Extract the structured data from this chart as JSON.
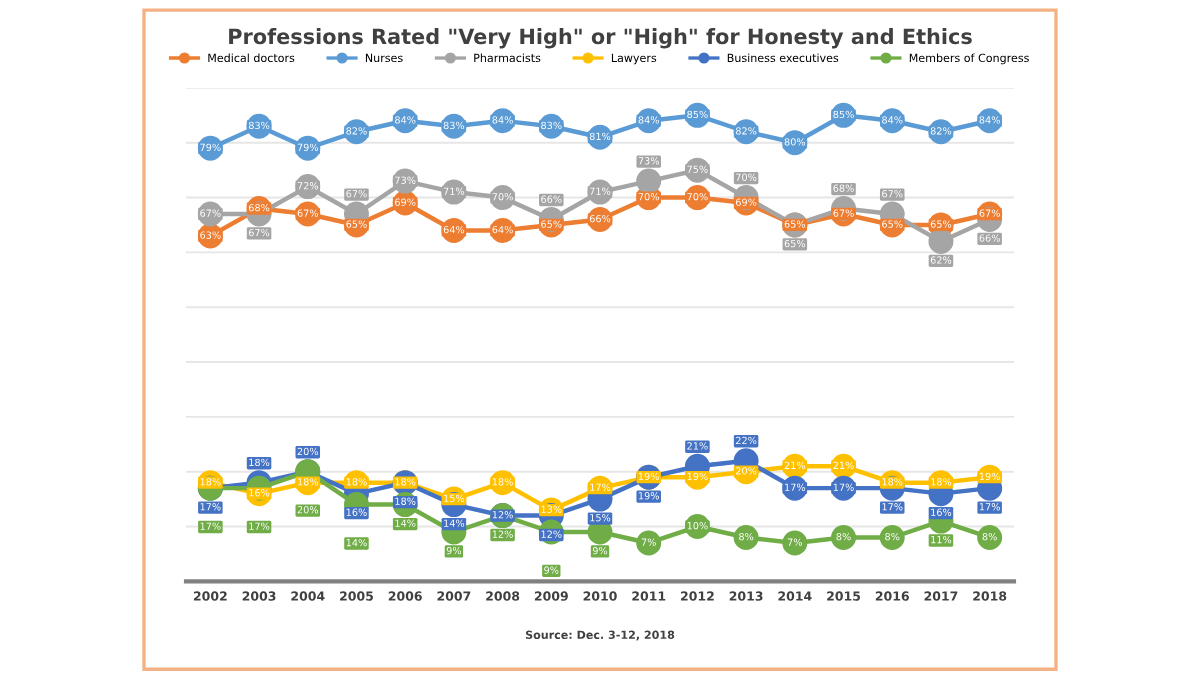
{
  "chart_data": {
    "type": "line",
    "title": "Professions Rated \"Very High\" or \"High\" for Honesty and Ethics",
    "categories": [
      "2002",
      "2003",
      "2004",
      "2005",
      "2006",
      "2007",
      "2008",
      "2009",
      "2010",
      "2011",
      "2012",
      "2013",
      "2014",
      "2015",
      "2016",
      "2017",
      "2018"
    ],
    "series": [
      {
        "name": "Medical doctors",
        "color": "#ed7d31",
        "values": [
          63,
          68,
          67,
          65,
          69,
          64,
          64,
          65,
          66,
          70,
          70,
          69,
          65,
          67,
          65,
          65,
          67
        ],
        "value_labels": [
          "63%",
          "68%",
          "67%",
          "65%",
          "69%",
          "64%",
          "64%",
          "65%",
          "66%",
          "70%",
          "70%",
          "69%",
          "65%",
          "67%",
          "65%",
          "65%",
          "67%"
        ]
      },
      {
        "name": "Nurses",
        "color": "#5b9bd5",
        "values": [
          79,
          83,
          79,
          82,
          84,
          83,
          84,
          83,
          81,
          84,
          85,
          82,
          80,
          85,
          84,
          82,
          84
        ],
        "value_labels": [
          "79%",
          "83%",
          "79%",
          "82%",
          "84%",
          "83%",
          "84%",
          "83%",
          "81%",
          "84%",
          "85%",
          "82%",
          "80%",
          "85%",
          "84%",
          "82%",
          "84%"
        ]
      },
      {
        "name": "Pharmacists",
        "color": "#a5a5a5",
        "values": [
          67,
          67,
          72,
          67,
          73,
          71,
          70,
          66,
          71,
          73,
          75,
          70,
          65,
          68,
          67,
          62,
          66
        ],
        "value_labels": [
          "67%",
          "67%",
          "72%",
          "67%",
          "73%",
          "71%",
          "70%",
          "66%",
          "71%",
          "73%",
          "75%",
          "70%",
          "65%",
          "68%",
          "67%",
          "62%",
          "66%"
        ]
      },
      {
        "name": "Lawyers",
        "color": "#ffc000",
        "values": [
          18,
          16,
          18,
          18,
          18,
          15,
          18,
          13,
          17,
          19,
          19,
          20,
          21,
          21,
          18,
          18,
          19
        ],
        "value_labels": [
          "18%",
          "16%",
          "18%",
          "18%",
          "18%",
          "15%",
          "18%",
          "13%",
          "17%",
          "19%",
          "19%",
          "20%",
          "21%",
          "21%",
          "18%",
          "18%",
          "19%"
        ]
      },
      {
        "name": "Business executives",
        "color": "#4472c4",
        "values": [
          17,
          18,
          20,
          16,
          18,
          14,
          12,
          12,
          15,
          19,
          21,
          22,
          17,
          17,
          17,
          16,
          17
        ],
        "value_labels": [
          "17%",
          "18%",
          "20%",
          "16%",
          "18%",
          "14%",
          "12%",
          "12%",
          "15%",
          "19%",
          "21%",
          "22%",
          "17%",
          "17%",
          "17%",
          "16%",
          "17%"
        ]
      },
      {
        "name": "Members of Congress",
        "color": "#70ad47",
        "values": [
          17,
          17,
          20,
          14,
          14,
          9,
          12,
          9,
          9,
          7,
          10,
          8,
          7,
          8,
          8,
          11,
          8
        ],
        "value_labels": [
          "17%",
          "17%",
          "20%",
          "14%",
          "14%",
          "9%",
          "12%",
          "9%",
          "9%",
          "7%",
          "10%",
          "8%",
          "7%",
          "8%",
          "8%",
          "11%",
          "8%"
        ]
      }
    ],
    "ylim": [
      0,
      90
    ],
    "yticks": [
      {
        "value": 0,
        "label": null
      },
      {
        "value": 10,
        "label": null
      },
      {
        "value": 20,
        "label": null
      },
      {
        "value": 30,
        "label": null
      },
      {
        "value": 40,
        "label": null
      },
      {
        "value": 50,
        "label": null
      },
      {
        "value": 60,
        "label": null
      },
      {
        "value": 70,
        "label": null
      },
      {
        "value": 80,
        "label": null
      },
      {
        "value": 90,
        "label": null
      }
    ],
    "tick_labels": "x",
    "grid": "y",
    "legend": "top",
    "marker": "circle",
    "line_style": "solid",
    "annotations": [
      "Source: Dec. 3-12, 2018"
    ]
  }
}
